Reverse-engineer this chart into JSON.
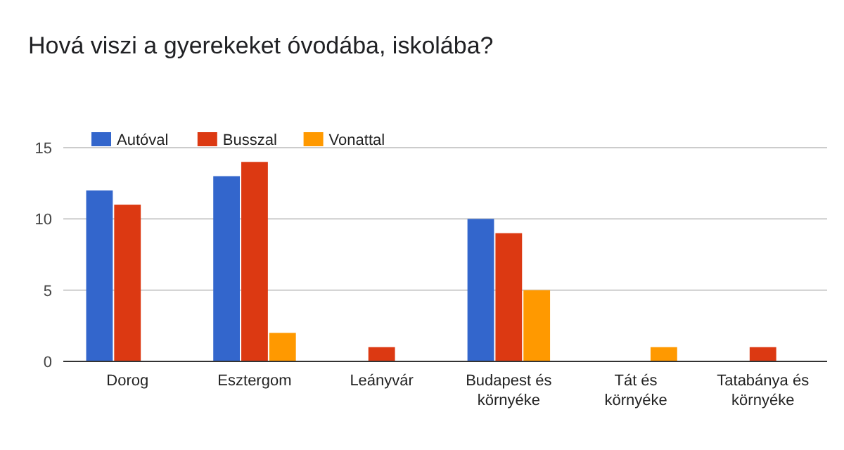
{
  "chart_data": {
    "type": "bar",
    "title": "Hová viszi a gyerekeket óvodába, iskolába?",
    "categories": [
      "Dorog",
      "Esztergom",
      "Leányvár",
      "Budapest és környéke",
      "Tát és környéke",
      "Tatabánya és környéke"
    ],
    "series": [
      {
        "name": "Autóval",
        "color": "#3366cc",
        "values": [
          12,
          13,
          0,
          10,
          0,
          0
        ]
      },
      {
        "name": "Busszal",
        "color": "#dc3912",
        "values": [
          11,
          14,
          1,
          9,
          0,
          1
        ]
      },
      {
        "name": "Vonattal",
        "color": "#ff9900",
        "values": [
          0,
          2,
          0,
          5,
          1,
          0
        ]
      }
    ],
    "ylim": [
      0,
      15
    ],
    "yticks": [
      0,
      5,
      10,
      15
    ],
    "grid": "y",
    "legend": "top left"
  }
}
